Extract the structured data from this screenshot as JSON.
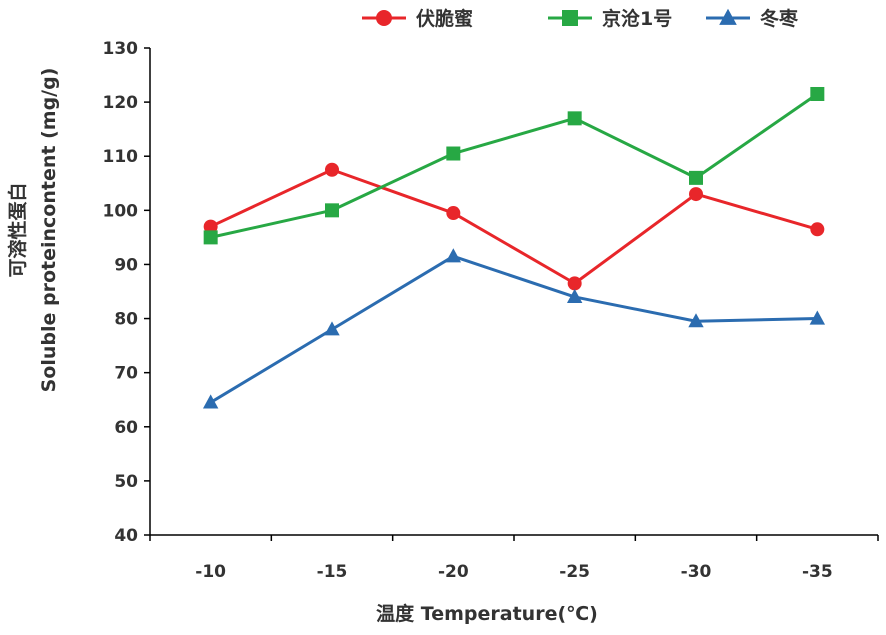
{
  "chart_data": {
    "type": "line",
    "title": "",
    "xlabel": "温度 Temperature(℃)",
    "ylabel_cn": "可溶性蛋白",
    "ylabel_en": "Soluble proteincontent (mg/g)",
    "categories": [
      "-10",
      "-15",
      "-20",
      "-25",
      "-30",
      "-35"
    ],
    "ylim": [
      40,
      130
    ],
    "yticks": [
      "40",
      "50",
      "60",
      "70",
      "80",
      "90",
      "100",
      "110",
      "120",
      "130"
    ],
    "grid": false,
    "legend_position": "top",
    "series": [
      {
        "name": "伏脆蜜",
        "color": "#e8262a",
        "marker": "circle",
        "values": [
          97,
          107.5,
          99.5,
          86.5,
          103,
          96.5
        ]
      },
      {
        "name": "京沧1号",
        "color": "#27a844",
        "marker": "square",
        "values": [
          95,
          100,
          110.5,
          117,
          106,
          121.5
        ]
      },
      {
        "name": "冬枣",
        "color": "#2b6cb0",
        "marker": "triangle",
        "values": [
          64.5,
          78,
          91.5,
          84,
          79.5,
          80
        ]
      }
    ]
  }
}
